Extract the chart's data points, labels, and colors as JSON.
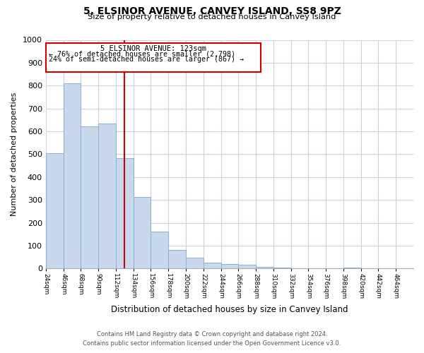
{
  "title": "5, ELSINOR AVENUE, CANVEY ISLAND, SS8 9PZ",
  "subtitle": "Size of property relative to detached houses in Canvey Island",
  "xlabel": "Distribution of detached houses by size in Canvey Island",
  "ylabel": "Number of detached properties",
  "bar_edges": [
    24,
    46,
    68,
    90,
    112,
    134,
    156,
    178,
    200,
    222,
    244,
    266,
    288,
    310,
    332,
    354,
    376,
    398,
    420,
    442,
    464
  ],
  "bar_heights": [
    505,
    810,
    622,
    633,
    482,
    313,
    162,
    80,
    47,
    25,
    20,
    15,
    8,
    3,
    1,
    1,
    1,
    5,
    1,
    1,
    1
  ],
  "bar_color": "#c8d8ed",
  "bar_edgecolor": "#8ab0d0",
  "property_size": 123,
  "vline_color": "#cc0000",
  "annotation_box_edgecolor": "#cc0000",
  "annotation_title": "5 ELSINOR AVENUE: 123sqm",
  "annotation_line1": "← 76% of detached houses are smaller (2,798)",
  "annotation_line2": "24% of semi-detached houses are larger (867) →",
  "ylim": [
    0,
    1000
  ],
  "yticks": [
    0,
    100,
    200,
    300,
    400,
    500,
    600,
    700,
    800,
    900,
    1000
  ],
  "xtick_labels": [
    "24sqm",
    "46sqm",
    "68sqm",
    "90sqm",
    "112sqm",
    "134sqm",
    "156sqm",
    "178sqm",
    "200sqm",
    "222sqm",
    "244sqm",
    "266sqm",
    "288sqm",
    "310sqm",
    "332sqm",
    "354sqm",
    "376sqm",
    "398sqm",
    "420sqm",
    "442sqm",
    "464sqm"
  ],
  "footer_line1": "Contains HM Land Registry data © Crown copyright and database right 2024.",
  "footer_line2": "Contains public sector information licensed under the Open Government Licence v3.0.",
  "background_color": "#ffffff",
  "grid_color": "#c8d4e0"
}
